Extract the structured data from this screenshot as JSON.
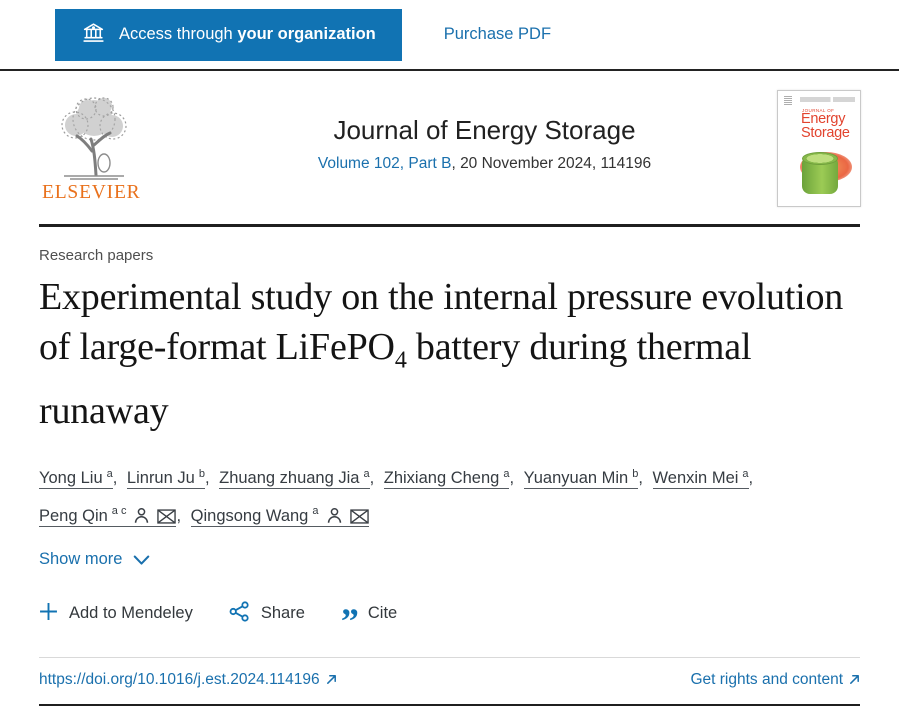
{
  "topbar": {
    "access_prefix": "Access through",
    "access_bold": "your organization",
    "purchase_label": "Purchase PDF"
  },
  "banner": {
    "publisher_wordmark": "ELSEVIER",
    "journal_title": "Journal of Energy Storage",
    "volume_link": "Volume 102, Part B",
    "issue_suffix": ", 20 November 2024, 114196",
    "cover": {
      "kicker": "JOURNAL OF",
      "title_line1": "Energy",
      "title_line2": "Storage"
    }
  },
  "article": {
    "section_label": "Research papers",
    "title_pre": "Experimental study on the internal pressure evolution of large-format LiFePO",
    "title_sub": "4",
    "title_post": " battery during thermal runaway",
    "authors": [
      {
        "name": "Yong Liu",
        "sup": "a"
      },
      {
        "name": "Linrun Ju",
        "sup": "b"
      },
      {
        "name": "Zhuang zhuang Jia",
        "sup": "a"
      },
      {
        "name": "Zhixiang Cheng",
        "sup": "a"
      },
      {
        "name": "Yuanyuan Min",
        "sup": "b"
      },
      {
        "name": "Wenxin Mei",
        "sup": "a"
      },
      {
        "name": "Peng Qin",
        "sup": "a c",
        "person_icon": true,
        "email_icon": true
      },
      {
        "name": "Qingsong Wang",
        "sup": "a",
        "person_icon": true,
        "email_icon": true
      }
    ],
    "show_more_label": "Show more",
    "actions": {
      "mendeley_label": "Add to Mendeley",
      "share_label": "Share",
      "cite_label": "Cite"
    },
    "doi_link": "https://doi.org/10.1016/j.est.2024.114196",
    "rights_link": "Get rights and content"
  },
  "colors": {
    "accent_blue": "#1173b3",
    "link_blue": "#1a70ad",
    "elsevier_orange": "#e9711c",
    "cover_red": "#e2432e",
    "cover_green": "#8cc63f",
    "divider_dark": "#1f1f1f"
  }
}
